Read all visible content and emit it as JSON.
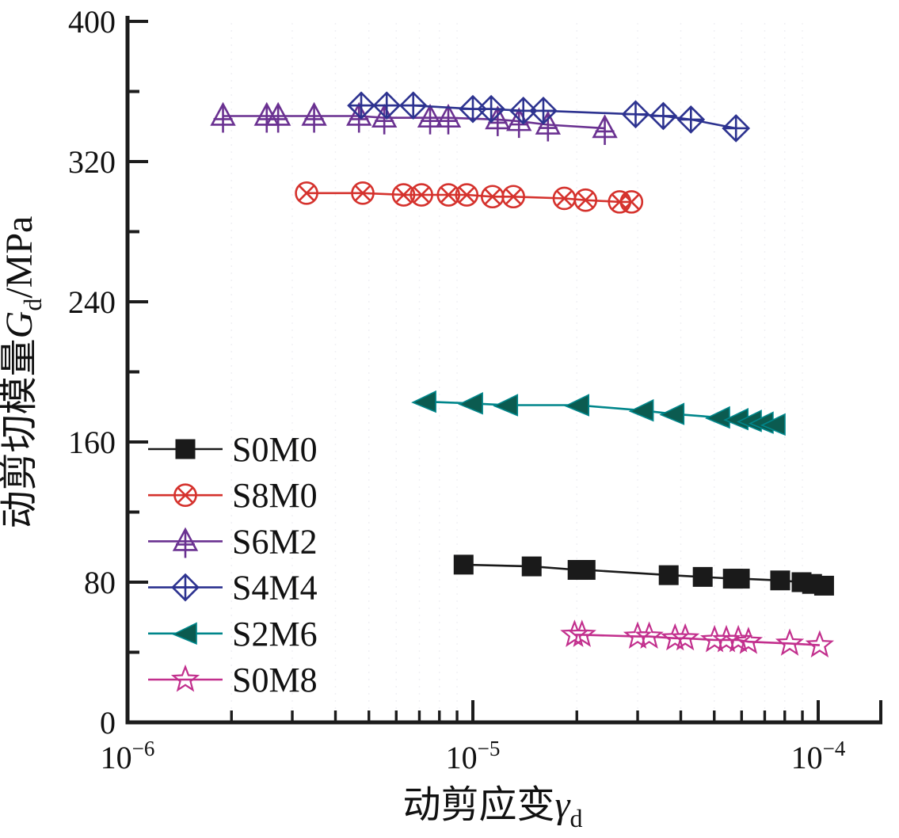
{
  "figure": {
    "background": "#ffffff",
    "axis_color": "#1c1c1c",
    "grid_color": "#ebebf1"
  },
  "chart_data": {
    "type": "line",
    "title": "",
    "x_scale": "log",
    "xlim": [
      1e-06,
      0.00015
    ],
    "ylim": [
      0,
      400
    ],
    "y_major_tick_step": 80,
    "y_minor_tick_step": 40,
    "y_tick_labels": [
      "0",
      "80",
      "160",
      "240",
      "320",
      "400"
    ],
    "x_major_ticks": [
      {
        "value": 1e-06,
        "mantissa": "10",
        "exponent": "−6"
      },
      {
        "value": 1e-05,
        "mantissa": "10",
        "exponent": "−5"
      },
      {
        "value": 0.0001,
        "mantissa": "10",
        "exponent": "−4"
      }
    ],
    "grid": {
      "vertical_minor_dotted": true
    },
    "xlabel": {
      "prefix": "动剪应变",
      "symbol": "γ",
      "subscript": "d"
    },
    "ylabel": {
      "prefix": "动剪切模量",
      "symbol": "G",
      "subscript": "d",
      "suffix": "/MPa"
    },
    "legend_position": "inside-left-middle",
    "series": [
      {
        "name": "S0M0",
        "color": "#1a1a1a",
        "marker": "square-filled",
        "x": [
          9.4e-06,
          1.48e-05,
          2.01e-05,
          2.12e-05,
          3.69e-05,
          4.63e-05,
          5.66e-05,
          5.93e-05,
          7.76e-05,
          8.95e-05,
          9.6e-05,
          0.000104
        ],
        "y": [
          90,
          89,
          87,
          87,
          84,
          83,
          82,
          82,
          81,
          80,
          79,
          78
        ]
      },
      {
        "name": "S8M0",
        "color": "#d5322d",
        "marker": "circle-cross",
        "x": [
          3.3e-06,
          4.8e-06,
          6.3e-06,
          7.1e-06,
          8.5e-06,
          9.6e-06,
          1.14e-05,
          1.31e-05,
          1.84e-05,
          2.12e-05,
          2.66e-05,
          2.88e-05
        ],
        "y": [
          302,
          302,
          301,
          301,
          301,
          301,
          300,
          300,
          299,
          298,
          297,
          297
        ]
      },
      {
        "name": "S6M2",
        "color": "#6a3191",
        "marker": "triangle-up-cross",
        "x": [
          1.89e-06,
          2.53e-06,
          2.73e-06,
          3.47e-06,
          4.68e-06,
          5.54e-06,
          7.52e-06,
          8.49e-06,
          1.18e-05,
          1.36e-05,
          1.65e-05,
          2.41e-05
        ],
        "y": [
          346,
          346,
          346,
          346,
          346,
          345,
          345,
          345,
          344,
          343,
          341,
          339
        ]
      },
      {
        "name": "S4M4",
        "color": "#2d3390",
        "marker": "diamond-cross",
        "x": [
          4.75e-06,
          5.63e-06,
          6.72e-06,
          1e-05,
          1.13e-05,
          1.4e-05,
          1.6e-05,
          2.96e-05,
          3.56e-05,
          4.28e-05,
          5.78e-05
        ],
        "y": [
          352,
          352,
          352,
          350,
          350,
          349,
          349,
          347,
          346,
          344,
          339
        ]
      },
      {
        "name": "S2M6",
        "color": "#00868b",
        "marker_fill": "#0b5b50",
        "marker": "triangle-left-filled",
        "x": [
          7.25e-06,
          9.9e-06,
          1.25e-05,
          2.01e-05,
          3.09e-05,
          3.79e-05,
          5.14e-05,
          5.81e-05,
          6.35e-05,
          6.87e-05,
          7.44e-05
        ],
        "y": [
          183,
          182,
          181,
          181,
          178,
          176,
          174,
          173,
          172,
          171,
          170
        ]
      },
      {
        "name": "S0M8",
        "color": "#c22f8d",
        "marker": "star-open",
        "x": [
          1.97e-05,
          2.07e-05,
          3e-05,
          3.24e-05,
          3.85e-05,
          4.12e-05,
          5.01e-05,
          5.42e-05,
          5.87e-05,
          6.28e-05,
          8.27e-05,
          0.000101
        ],
        "y": [
          50,
          50,
          49,
          49,
          48,
          48,
          47,
          47,
          47,
          46,
          45,
          44
        ]
      }
    ]
  }
}
